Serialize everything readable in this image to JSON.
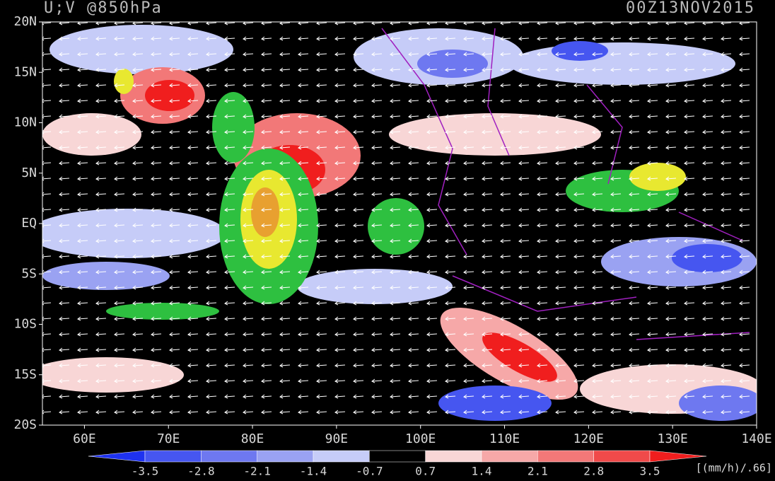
{
  "map": {
    "title": "U;V @850hPa",
    "time": "00Z13NOV2015",
    "lon_range": [
      55,
      140
    ],
    "lat_range": [
      -20,
      20
    ],
    "lon_ticks": [
      {
        "value": 60,
        "label": "60E"
      },
      {
        "value": 70,
        "label": "70E"
      },
      {
        "value": 80,
        "label": "80E"
      },
      {
        "value": 90,
        "label": "90E"
      },
      {
        "value": 100,
        "label": "100E"
      },
      {
        "value": 110,
        "label": "110E"
      },
      {
        "value": 120,
        "label": "120E"
      },
      {
        "value": 130,
        "label": "130E"
      },
      {
        "value": 140,
        "label": "140E"
      }
    ],
    "lat_ticks": [
      {
        "value": 20,
        "label": "20N"
      },
      {
        "value": 15,
        "label": "15N"
      },
      {
        "value": 10,
        "label": "10N"
      },
      {
        "value": 5,
        "label": "5N"
      },
      {
        "value": 0,
        "label": "EQ"
      },
      {
        "value": -5,
        "label": "5S"
      },
      {
        "value": -10,
        "label": "10S"
      },
      {
        "value": -15,
        "label": "15S"
      },
      {
        "value": -20,
        "label": "20S"
      }
    ],
    "colorbar": {
      "levels": [
        -3.5,
        -2.8,
        -2.1,
        -1.4,
        -0.7,
        0.7,
        1.4,
        2.1,
        2.8,
        3.5
      ],
      "colors": [
        "#1e32f0",
        "#4656f0",
        "#6e78f0",
        "#9aa2f2",
        "#c6ccf8",
        "#000000",
        "#f8d6d6",
        "#f6a8a8",
        "#f27878",
        "#f04a4a",
        "#f01e1e"
      ],
      "unit": "[(mm/h)/.66]"
    }
  }
}
